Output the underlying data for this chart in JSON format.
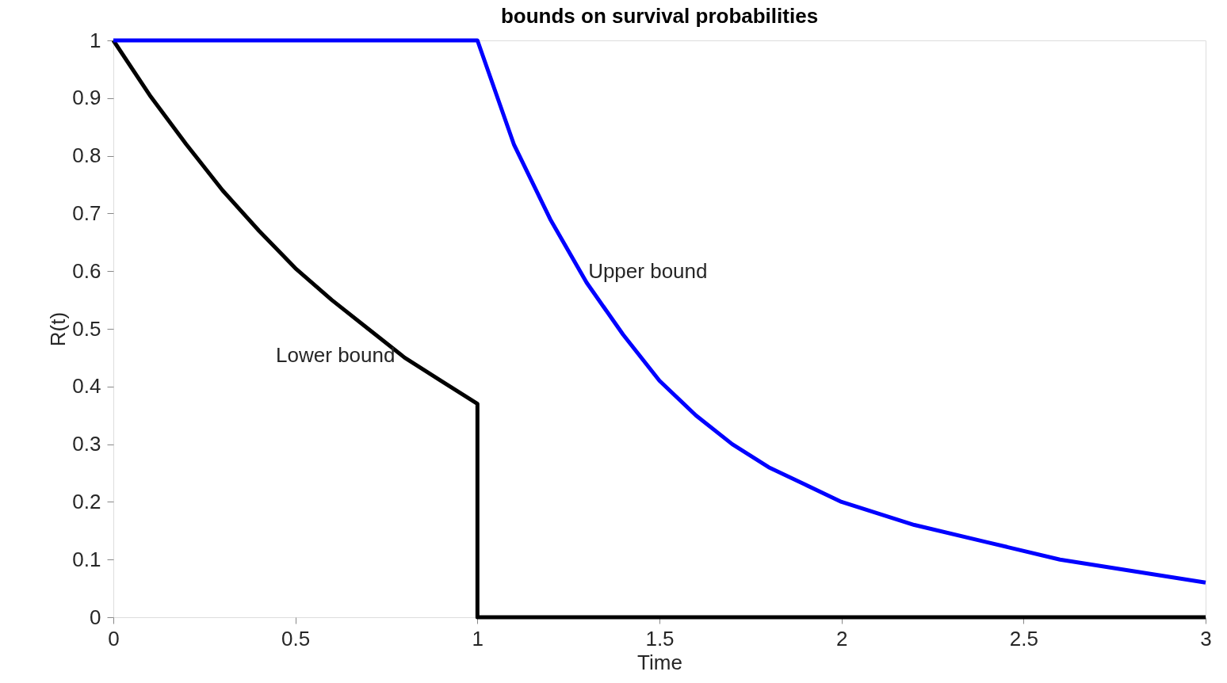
{
  "chart_data": {
    "type": "line",
    "title": "bounds on survival probabilities",
    "xlabel": "Time",
    "ylabel": "R(t)",
    "xlim": [
      0,
      3
    ],
    "ylim": [
      0,
      1
    ],
    "xticks": [
      0,
      0.5,
      1,
      1.5,
      2,
      2.5,
      3
    ],
    "yticks": [
      0,
      0.1,
      0.2,
      0.3,
      0.4,
      0.5,
      0.6,
      0.7,
      0.8,
      0.9,
      1
    ],
    "grid": false,
    "marker": "none",
    "line_style": "solid",
    "series": [
      {
        "name": "Lower bound",
        "color": "#000000",
        "x": [
          0,
          0.1,
          0.2,
          0.3,
          0.4,
          0.5,
          0.6,
          0.7,
          0.8,
          0.9,
          1,
          1,
          3
        ],
        "values": [
          1,
          0.905,
          0.82,
          0.74,
          0.67,
          0.605,
          0.55,
          0.5,
          0.45,
          0.41,
          0.37,
          0,
          0
        ]
      },
      {
        "name": "Upper bound",
        "color": "#0000ff",
        "x": [
          0,
          1,
          1.1,
          1.2,
          1.3,
          1.4,
          1.5,
          1.6,
          1.7,
          1.8,
          1.9,
          2,
          2.2,
          2.4,
          2.6,
          2.8,
          3
        ],
        "values": [
          1,
          1,
          0.82,
          0.69,
          0.58,
          0.49,
          0.41,
          0.35,
          0.3,
          0.26,
          0.23,
          0.2,
          0.16,
          0.13,
          0.1,
          0.08,
          0.06
        ]
      }
    ]
  }
}
